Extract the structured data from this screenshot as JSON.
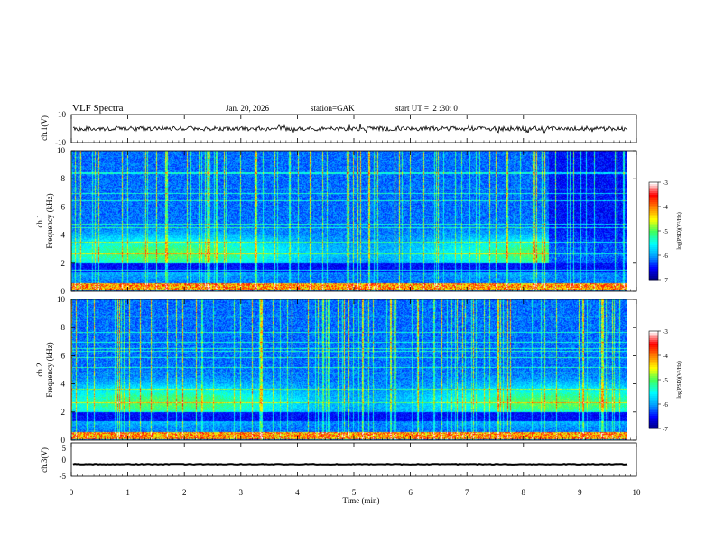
{
  "header": {
    "title": "VLF Spectra",
    "date": "Jan. 20, 2026",
    "station": "station=GAK",
    "start": "start UT =  2 :30: 0"
  },
  "chart_data": {
    "type": "heatmap",
    "x_axis": {
      "label": "Time (min)",
      "range": [
        0,
        10
      ],
      "ticks": [
        0,
        1,
        2,
        3,
        4,
        5,
        6,
        7,
        8,
        9,
        10
      ],
      "tick_labels": [
        "0",
        "1",
        "2",
        "3",
        "4",
        "5",
        "6",
        "7",
        "8",
        "9",
        "10"
      ],
      "data_end": 9.85
    },
    "panels": [
      {
        "id": "ch1-waveform",
        "type": "line",
        "ylabel": "ch.1(V)",
        "ylim": [
          -10,
          10
        ],
        "tick_labels": [
          "10",
          "-10"
        ],
        "baseline": 0,
        "amplitude": 2
      },
      {
        "id": "ch1-spectrogram",
        "type": "heatmap",
        "ylabel_line1": "ch.1",
        "ylabel_line2": "Frequency (kHz)",
        "ylim": [
          0,
          10
        ],
        "yticks": [
          0,
          2,
          4,
          6,
          8,
          10
        ],
        "tick_labels": [
          "0",
          "2",
          "4",
          "6",
          "8",
          "10"
        ],
        "colorbar": {
          "label": "log(PSD)(V²/Hz)",
          "range": [
            -7,
            -3
          ],
          "ticks": [
            -3,
            -4,
            -5,
            -6,
            -7
          ],
          "tick_labels": [
            "-3",
            "-4",
            "-5",
            "-6",
            "-7"
          ]
        }
      },
      {
        "id": "ch2-spectrogram",
        "type": "heatmap",
        "ylabel_line1": "ch.2",
        "ylabel_line2": "Frequency (kHz)",
        "ylim": [
          0,
          10
        ],
        "yticks": [
          0,
          2,
          4,
          6,
          8,
          10
        ],
        "tick_labels": [
          "0",
          "2",
          "4",
          "6",
          "8",
          "10"
        ],
        "colorbar": {
          "label": "log(PSD)(V²/Hz)",
          "range": [
            -7,
            -3
          ],
          "ticks": [
            -3,
            -4,
            -5,
            -6,
            -7
          ],
          "tick_labels": [
            "-3",
            "-4",
            "-5",
            "-6",
            "-7"
          ]
        }
      },
      {
        "id": "ch3-waveform",
        "type": "line",
        "ylabel": "ch.3(V)",
        "ylim": [
          -5,
          5
        ],
        "tick_labels": [
          "5",
          "0",
          "-5"
        ],
        "baseline": -1.5,
        "amplitude": 0.2
      }
    ],
    "colormap": [
      "#00007a",
      "#0000ff",
      "#00a0ff",
      "#00ffff",
      "#40ff60",
      "#ffff00",
      "#ff8000",
      "#ff0000",
      "#ffffff"
    ]
  }
}
